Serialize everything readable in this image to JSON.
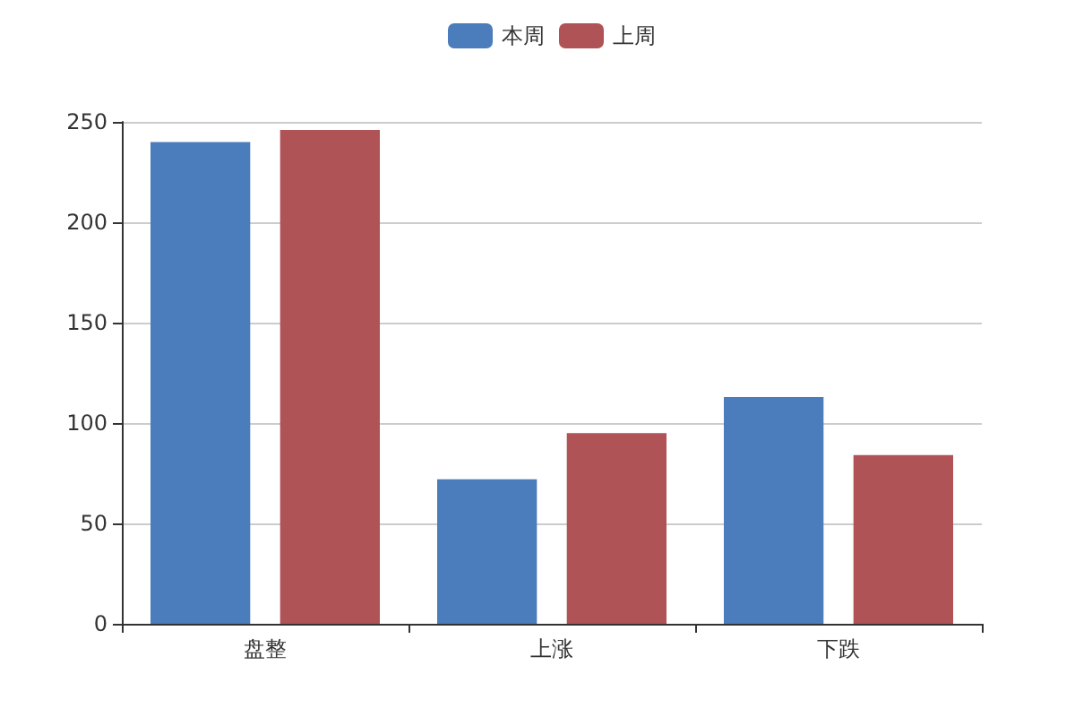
{
  "chart_data": {
    "type": "bar",
    "categories": [
      "盘整",
      "上涨",
      "下跌"
    ],
    "series": [
      {
        "name": "本周",
        "color": "#4b7cbb",
        "values": [
          240,
          72,
          113
        ]
      },
      {
        "name": "上周",
        "color": "#af5357",
        "values": [
          246,
          95,
          84
        ]
      }
    ],
    "ylim": [
      0,
      250
    ],
    "yticks": [
      0,
      50,
      100,
      150,
      200,
      250
    ],
    "grid": "y",
    "legend": "top"
  }
}
